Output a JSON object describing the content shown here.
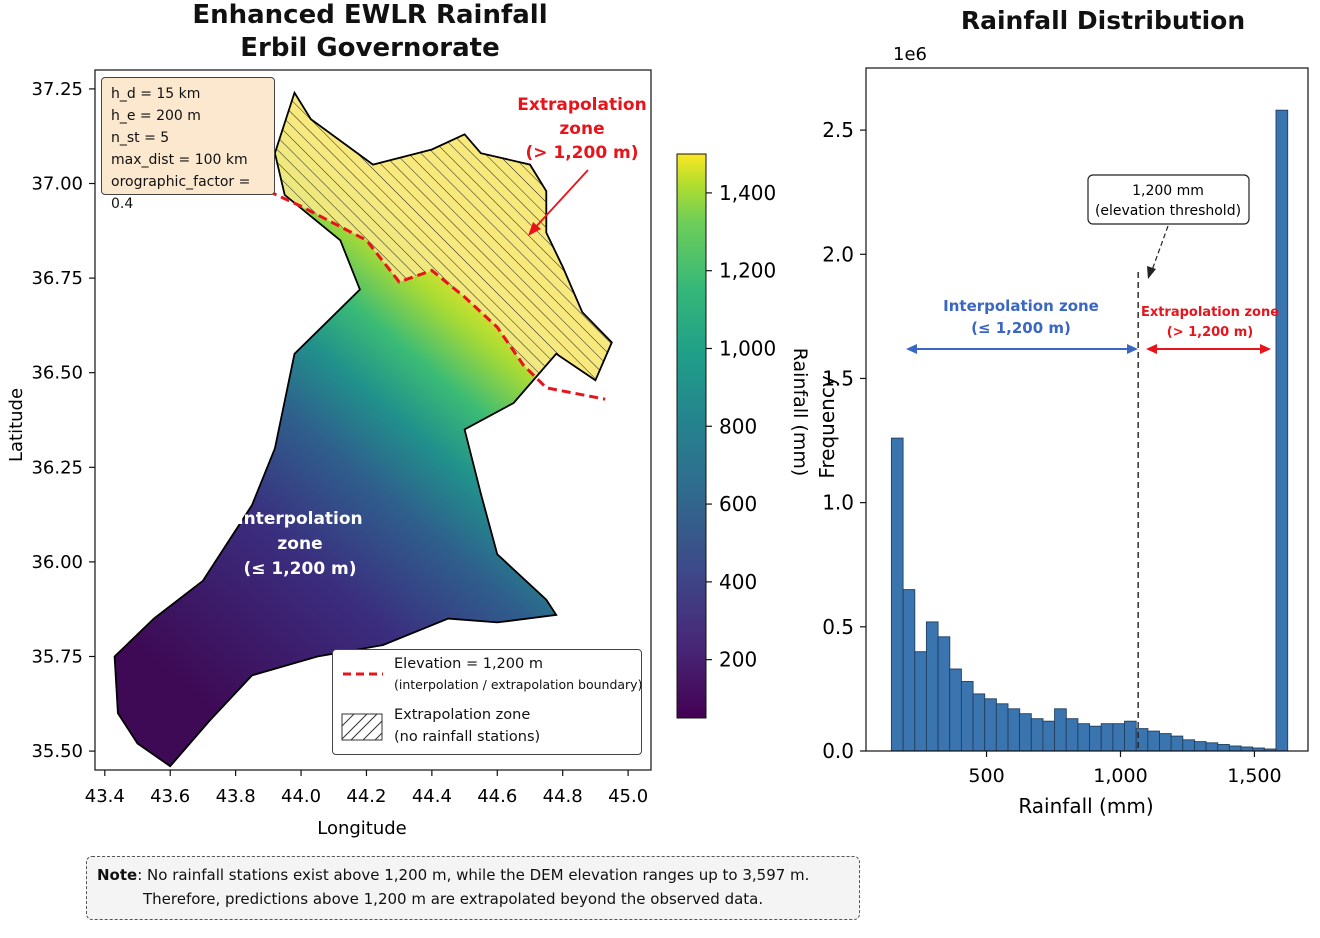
{
  "titles": {
    "map_title_line1": "Enhanced EWLR Rainfall",
    "map_title_line2": "Erbil Governorate",
    "hist_title": "Rainfall Distribution"
  },
  "params_box": {
    "lines": [
      "h_d = 15 km",
      "h_e = 200 m",
      "n_st = 5",
      "max_dist = 100 km",
      "orographic_factor = 0.4"
    ]
  },
  "map_annotations": {
    "extrap_line1": "Extrapolation",
    "extrap_line2": "zone",
    "extrap_line3": "(> 1,200 m)",
    "interp_line1": "Interpolation",
    "interp_line2": "zone",
    "interp_line3": "(≤ 1,200 m)"
  },
  "legend": {
    "item1_line1": "Elevation = 1,200 m",
    "item1_line2": "(interpolation / extrapolation boundary)",
    "item2_line1": "Extrapolation zone",
    "item2_line2": "(no rainfall stations)"
  },
  "note": {
    "bold": "Note",
    "line1": ": No rainfall stations exist above 1,200 m, while the DEM elevation ranges up to 3,597 m.",
    "line2": "Therefore, predictions above 1,200 m are extrapolated beyond the observed data."
  },
  "hist_annotations": {
    "threshold_line1": "1,200 mm",
    "threshold_line2": "(elevation threshold)",
    "interp_line1": "Interpolation zone",
    "interp_line2": "(≤ 1,200 m)",
    "extrap_line1": "Extrapolation zone",
    "extrap_line2": "(> 1,200 m)"
  },
  "colors": {
    "bar": "#3b75af",
    "boundary": "#e8141c",
    "interp_arrow": "#3a66c4",
    "extrap_arrow": "#e8141c",
    "viridis_low": "#440154",
    "viridis_high": "#fde725"
  },
  "chart_data": [
    {
      "type": "heatmap",
      "title": "Enhanced EWLR Rainfall\nErbil Governorate",
      "xlabel": "Longitude",
      "ylabel": "Latitude",
      "xticks": [
        43.4,
        43.6,
        43.8,
        44.0,
        44.2,
        44.4,
        44.6,
        44.8,
        45.0
      ],
      "yticks": [
        35.5,
        35.75,
        36.0,
        36.25,
        36.5,
        36.75,
        37.0,
        37.25
      ],
      "xtick_labels": [
        "43.4",
        "43.6",
        "43.8",
        "44.0",
        "44.2",
        "44.4",
        "44.6",
        "44.8",
        "45.0"
      ],
      "ytick_labels": [
        "35.50",
        "35.75",
        "36.00",
        "36.25",
        "36.50",
        "36.75",
        "37.00",
        "37.25"
      ],
      "xlim": [
        43.37,
        45.07
      ],
      "ylim": [
        35.45,
        37.3
      ],
      "colorbar": {
        "label": "Rainfall (mm)",
        "range": [
          50,
          1500
        ],
        "ticks": [
          200,
          400,
          600,
          800,
          1000,
          1200,
          1400
        ],
        "tick_labels": [
          "200",
          "400",
          "600",
          "800",
          "1,000",
          "1,200",
          "1,400"
        ],
        "colormap": "viridis"
      },
      "region_outline": [
        [
          43.6,
          35.46
        ],
        [
          43.5,
          35.52
        ],
        [
          43.44,
          35.6
        ],
        [
          43.43,
          35.75
        ],
        [
          43.55,
          35.85
        ],
        [
          43.7,
          35.95
        ],
        [
          43.85,
          36.15
        ],
        [
          43.92,
          36.3
        ],
        [
          43.98,
          36.55
        ],
        [
          44.18,
          36.72
        ],
        [
          44.12,
          36.85
        ],
        [
          43.95,
          36.97
        ],
        [
          43.92,
          37.08
        ],
        [
          43.98,
          37.24
        ],
        [
          44.03,
          37.17
        ],
        [
          44.22,
          37.05
        ],
        [
          44.4,
          37.09
        ],
        [
          44.5,
          37.13
        ],
        [
          44.55,
          37.08
        ],
        [
          44.7,
          37.05
        ],
        [
          44.75,
          36.98
        ],
        [
          44.75,
          36.87
        ],
        [
          44.8,
          36.78
        ],
        [
          44.86,
          36.66
        ],
        [
          44.95,
          36.58
        ],
        [
          44.9,
          36.48
        ],
        [
          44.78,
          36.55
        ],
        [
          44.65,
          36.42
        ],
        [
          44.5,
          36.35
        ],
        [
          44.55,
          36.18
        ],
        [
          44.6,
          36.02
        ],
        [
          44.75,
          35.9
        ],
        [
          44.78,
          35.86
        ],
        [
          44.6,
          35.84
        ],
        [
          44.45,
          35.85
        ],
        [
          44.25,
          35.78
        ],
        [
          44.05,
          35.75
        ],
        [
          43.85,
          35.7
        ],
        [
          43.72,
          35.58
        ]
      ],
      "boundary_1200m": [
        [
          43.9,
          36.98
        ],
        [
          44.0,
          36.94
        ],
        [
          44.2,
          36.85
        ],
        [
          44.3,
          36.74
        ],
        [
          44.4,
          36.77
        ],
        [
          44.5,
          36.7
        ],
        [
          44.6,
          36.62
        ],
        [
          44.68,
          36.52
        ],
        [
          44.75,
          36.46
        ],
        [
          44.93,
          36.43
        ]
      ],
      "params": [
        "h_d = 15 km",
        "h_e = 200 m",
        "n_st = 5",
        "max_dist = 100 km",
        "orographic_factor = 0.4"
      ],
      "annotations": [
        "Extrapolation zone (> 1,200 m)",
        "Interpolation zone (≤ 1,200 m)"
      ],
      "legend": [
        "Elevation = 1,200 m (interpolation / extrapolation boundary)",
        "Extrapolation zone (no rainfall stations)"
      ],
      "legend_position": "lower-right",
      "grid": false
    },
    {
      "type": "bar",
      "title": "Rainfall Distribution",
      "xlabel": "Rainfall (mm)",
      "ylabel": "Frequency",
      "y_multiplier": "1e6",
      "xlim": [
        50,
        1700
      ],
      "ylim": [
        0,
        2.75
      ],
      "xticks": [
        500,
        1000,
        1500
      ],
      "xtick_labels": [
        "500",
        "1,000",
        "1,500"
      ],
      "yticks": [
        0.0,
        0.5,
        1.0,
        1.5,
        2.0,
        2.5
      ],
      "ytick_labels": [
        "0.0",
        "0.5",
        "1.0",
        "1.5",
        "2.0",
        "2.5"
      ],
      "bin_start": 145,
      "bin_width": 43.5,
      "values": [
        1.26,
        0.65,
        0.4,
        0.52,
        0.46,
        0.33,
        0.28,
        0.23,
        0.21,
        0.19,
        0.17,
        0.15,
        0.13,
        0.12,
        0.17,
        0.13,
        0.11,
        0.1,
        0.11,
        0.11,
        0.12,
        0.09,
        0.08,
        0.07,
        0.06,
        0.045,
        0.038,
        0.033,
        0.026,
        0.02,
        0.016,
        0.012,
        0.008,
        2.58
      ],
      "threshold_x": 1066,
      "threshold_label": "1,200 mm (elevation threshold)",
      "annotations": [
        "Interpolation zone (≤ 1,200 m)",
        "Extrapolation zone (> 1,200 m)"
      ],
      "grid": false
    }
  ]
}
